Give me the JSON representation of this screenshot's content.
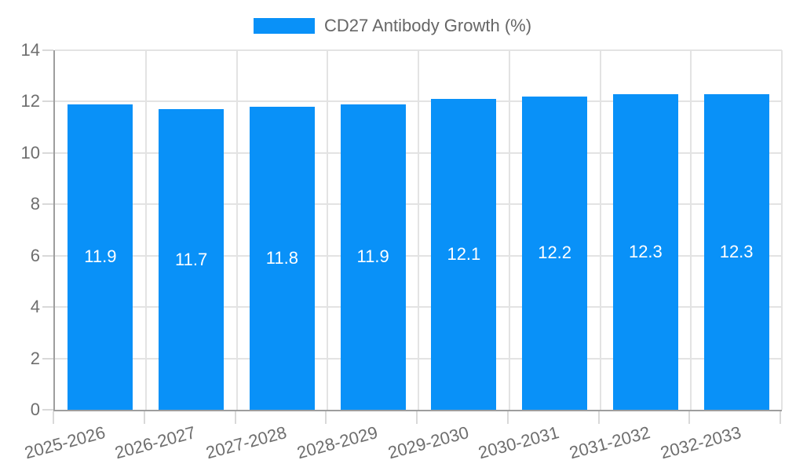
{
  "legend": {
    "label": "CD27 Antibody Growth (%)"
  },
  "chart_data": {
    "type": "bar",
    "title": "CD27 Antibody Growth (%)",
    "categories": [
      "2025-2026",
      "2026-2027",
      "2027-2028",
      "2028-2029",
      "2029-2030",
      "2030-2031",
      "2031-2032",
      "2032-2033"
    ],
    "series": [
      {
        "name": "CD27 Antibody Growth (%)",
        "values": [
          11.9,
          11.7,
          11.8,
          11.9,
          12.1,
          12.2,
          12.3,
          12.3
        ]
      }
    ],
    "bar_value_labels": [
      "11.9",
      "11.7",
      "11.8",
      "11.9",
      "12.1",
      "12.2",
      "12.3",
      "12.3"
    ],
    "xlabel": "",
    "ylabel": "",
    "ylim": [
      0,
      14
    ],
    "yticks": [
      0,
      2,
      4,
      6,
      8,
      10,
      12,
      14
    ],
    "grid": "both",
    "legend_position": "top-center",
    "x_label_rotation_deg": -15
  },
  "colors": {
    "bar": "#0991f8",
    "grid": "#e3e3e3",
    "axis": "#9e9e9e",
    "tick_mark": "#d9d9d9",
    "tick_text": "#6e6e6e",
    "legend_text": "#666666",
    "bar_label_text": "#ffffff",
    "background": "#ffffff"
  }
}
